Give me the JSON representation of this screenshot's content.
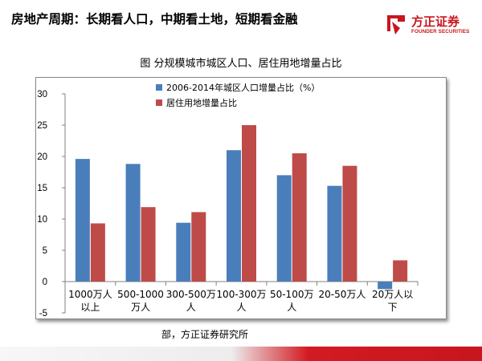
{
  "header": {
    "title": "房地产周期：长期看人口，中期看土地，短期看金融",
    "brand_name": "方正证券",
    "brand_sub": "FOUNDER SECURITIES",
    "brand_color": "#c8161e"
  },
  "figure_title": "图 分规模城市城区人口、居住用地增量占比",
  "source_text": "部，方正证券研究所",
  "chart_data": {
    "type": "bar",
    "categories": [
      [
        "1000万人",
        "以上"
      ],
      [
        "500-1000",
        "万人"
      ],
      [
        "300-500万",
        "人"
      ],
      [
        "100-300万",
        "人"
      ],
      [
        "50-100万",
        "人"
      ],
      [
        "20-50万人"
      ],
      [
        "20万人以",
        "下"
      ]
    ],
    "series": [
      {
        "name": "2006-2014年城区人口增量占比（%）",
        "values": [
          19.6,
          18.8,
          9.4,
          21.0,
          17.0,
          15.3,
          -1.2
        ],
        "color": "#4a7ebb"
      },
      {
        "name": "居住用地增量占比",
        "values": [
          9.3,
          11.9,
          11.1,
          25.0,
          20.5,
          18.5,
          3.4
        ],
        "color": "#be4b48"
      }
    ],
    "ylim": [
      -5,
      30
    ],
    "yticks": [
      -5,
      0,
      5,
      10,
      15,
      20,
      25,
      30
    ],
    "ytick_labels": [
      "-5",
      "0",
      "5",
      "10",
      "15",
      "20",
      "25",
      "30"
    ],
    "xlabel": "",
    "ylabel": "",
    "legend_position": "top-center",
    "grid": false
  }
}
